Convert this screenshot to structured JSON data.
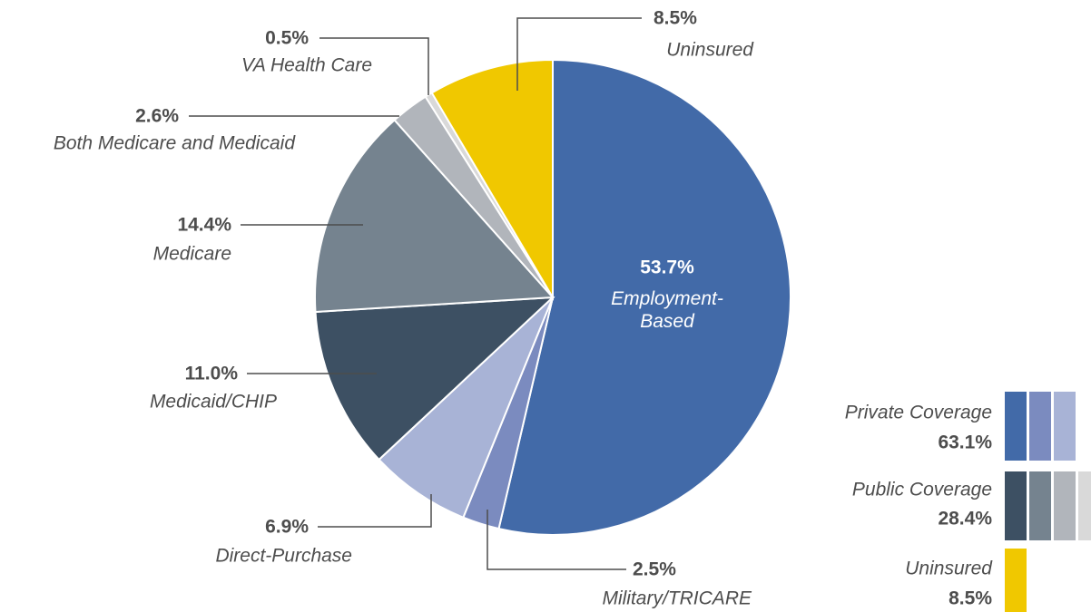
{
  "chart_data": {
    "type": "pie",
    "slices": [
      {
        "name": "Employment-Based",
        "value": 53.7,
        "value_label": "53.7%",
        "color": "#426aa8"
      },
      {
        "name": "Military/TRICARE",
        "value": 2.5,
        "value_label": "2.5%",
        "color": "#7b8bbf"
      },
      {
        "name": "Direct-Purchase",
        "value": 6.9,
        "value_label": "6.9%",
        "color": "#a8b3d6"
      },
      {
        "name": "Medicaid/CHIP",
        "value": 11.0,
        "value_label": "11.0%",
        "color": "#3d5063"
      },
      {
        "name": "Medicare",
        "value": 14.4,
        "value_label": "14.4%",
        "color": "#75838f"
      },
      {
        "name": "Both Medicare and Medicaid",
        "value": 2.6,
        "value_label": "2.6%",
        "color": "#b1b5bb"
      },
      {
        "name": "VA Health Care",
        "value": 0.5,
        "value_label": "0.5%",
        "color": "#d9d9d9"
      },
      {
        "name": "Uninsured",
        "value": 8.5,
        "value_label": "8.5%",
        "color": "#f0c800"
      }
    ],
    "legend": [
      {
        "name": "Private Coverage",
        "value": 63.1,
        "value_label": "63.1%",
        "colors": [
          "#426aa8",
          "#7b8bbf",
          "#a8b3d6"
        ]
      },
      {
        "name": "Public Coverage",
        "value": 28.4,
        "value_label": "28.4%",
        "colors": [
          "#3d5063",
          "#75838f",
          "#b1b5bb",
          "#d9d9d9"
        ]
      },
      {
        "name": "Uninsured",
        "value": 8.5,
        "value_label": "8.5%",
        "colors": [
          "#f0c800"
        ]
      }
    ]
  }
}
